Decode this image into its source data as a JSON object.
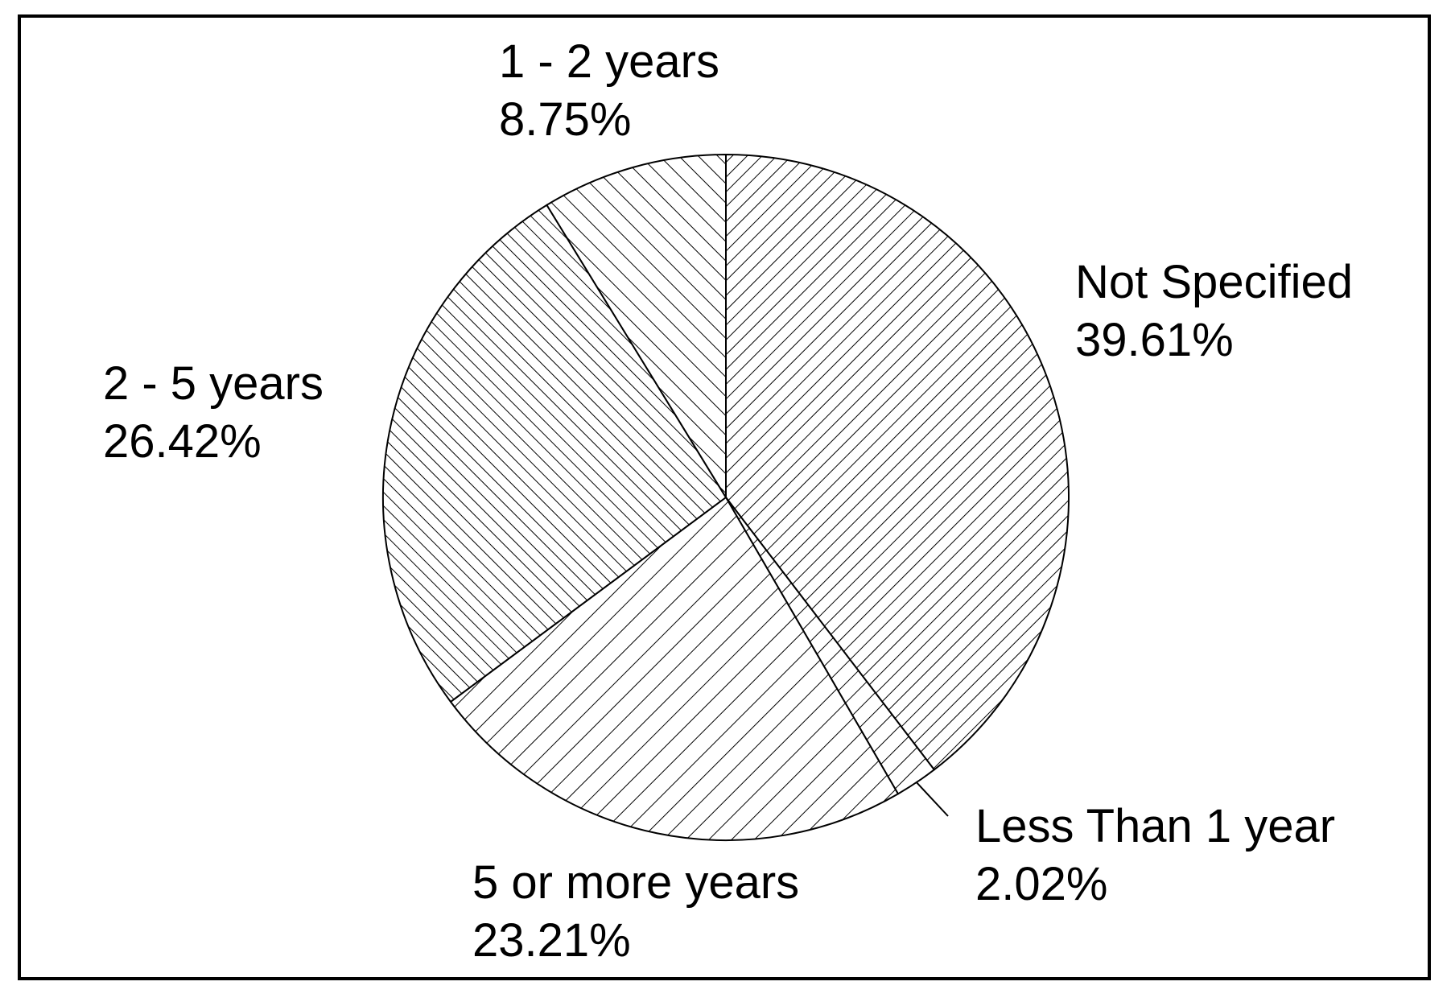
{
  "chart_data": {
    "type": "pie",
    "title": "",
    "slices": [
      {
        "label": "Not Specified",
        "value": 39.61,
        "value_label": "39.61%",
        "pattern": "hatch-diag-fine"
      },
      {
        "label": "Less Than 1 year",
        "value": 2.02,
        "value_label": "2.02%",
        "pattern": "hatch-diag-mid"
      },
      {
        "label": "5 or more years",
        "value": 23.21,
        "value_label": "23.21%",
        "pattern": "hatch-diag-wide"
      },
      {
        "label": "2 - 5 years",
        "value": 26.42,
        "value_label": "26.42%",
        "pattern": "hatch-back-fine"
      },
      {
        "label": "1 - 2 years",
        "value": 8.75,
        "value_label": "8.75%",
        "pattern": "hatch-back-mid"
      }
    ],
    "start_angle": "12 o'clock",
    "direction": "clockwise",
    "legend": "none",
    "colors": {
      "line": "#000000",
      "background": "#ffffff"
    }
  }
}
